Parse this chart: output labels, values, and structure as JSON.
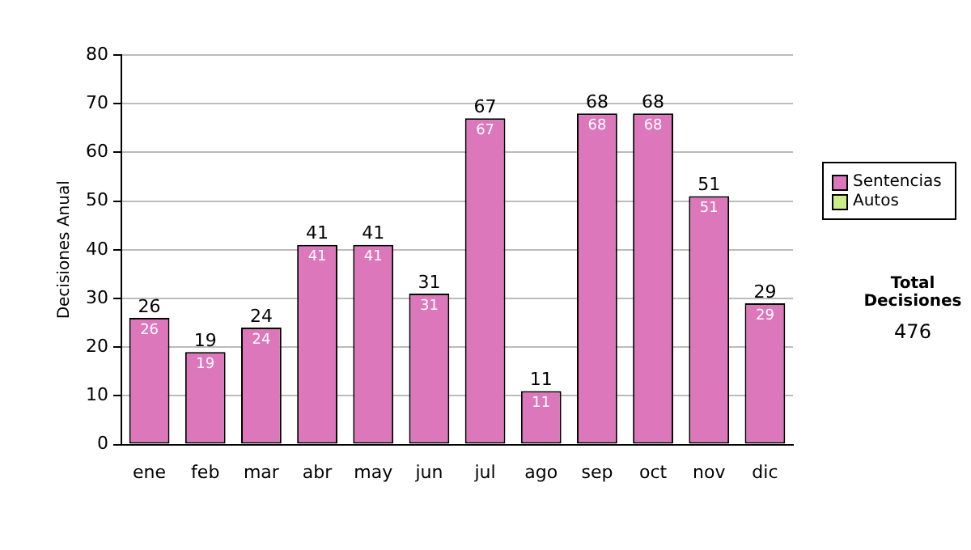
{
  "chart_data": {
    "type": "bar",
    "stacked": true,
    "ylabel": "Decisiones Anual",
    "categories": [
      "ene",
      "feb",
      "mar",
      "abr",
      "may",
      "jun",
      "jul",
      "ago",
      "sep",
      "oct",
      "nov",
      "dic"
    ],
    "series": [
      {
        "name": "Sentencias",
        "color": "#dd77bb",
        "values": [
          26,
          19,
          24,
          41,
          41,
          31,
          67,
          11,
          68,
          68,
          51,
          29
        ],
        "value_labels": [
          "26",
          "19",
          "24",
          "41",
          "41",
          "31",
          "67",
          "11",
          "68",
          "68",
          "51",
          "29"
        ]
      },
      {
        "name": "Autos",
        "color": "#ccee88",
        "values": [
          0,
          0,
          0,
          0,
          0,
          0,
          0,
          0,
          0,
          0,
          0,
          0
        ]
      }
    ],
    "totals": [
      "26",
      "19",
      "24",
      "41",
      "41",
      "31",
      "67",
      "11",
      "68",
      "68",
      "51",
      "29"
    ],
    "ylim": [
      0,
      80
    ],
    "yticks": [
      0,
      10,
      20,
      30,
      40,
      50,
      60,
      70,
      80
    ],
    "grid": "y",
    "legend": "right",
    "annotations": [
      "Total Decisiones",
      "476"
    ]
  }
}
